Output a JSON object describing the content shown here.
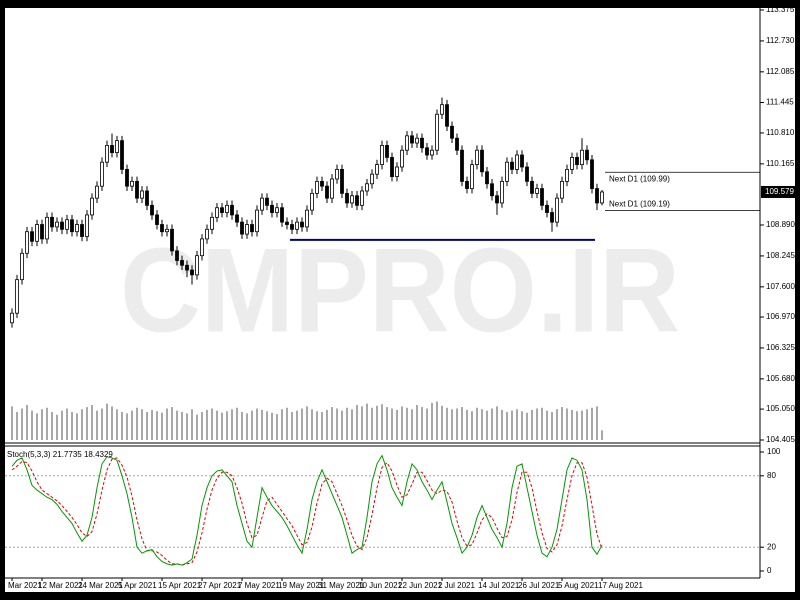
{
  "chart_data": {
    "type": "candlestick",
    "watermark": "CMPRO.IR",
    "categories": [
      "Mar 2021",
      null,
      null,
      null,
      null,
      null,
      "12 Mar 2021",
      null,
      null,
      null,
      null,
      null,
      null,
      null,
      "24 Mar 2021",
      null,
      null,
      null,
      null,
      null,
      null,
      null,
      "5 Apr 2021",
      null,
      null,
      null,
      null,
      null,
      null,
      null,
      "15 Apr 2021",
      null,
      null,
      null,
      null,
      null,
      null,
      null,
      "27 Apr 2021",
      null,
      null,
      null,
      null,
      null,
      null,
      null,
      "7 May 2021",
      null,
      null,
      null,
      null,
      null,
      null,
      null,
      "19 May 2021",
      null,
      null,
      null,
      null,
      null,
      null,
      null,
      "31 May 2021",
      null,
      null,
      null,
      null,
      null,
      null,
      null,
      "10 Jun 2021",
      null,
      null,
      null,
      null,
      null,
      null,
      null,
      "22 Jun 2021",
      null,
      null,
      null,
      null,
      null,
      null,
      null,
      "2 Jul 2021",
      null,
      null,
      null,
      null,
      null,
      null,
      null,
      "14 Jul 2021",
      null,
      null,
      null,
      null,
      null,
      null,
      null,
      "26 Jul 2021",
      null,
      null,
      null,
      null,
      null,
      null,
      null,
      "5 Aug 2021",
      null,
      null,
      null,
      null,
      null,
      null,
      null,
      "17 Aug 2021"
    ],
    "open": [
      106.85,
      107.05,
      107.75,
      108.3,
      108.75,
      108.55,
      108.9,
      108.6,
      109.05,
      108.85,
      108.95,
      108.8,
      109.0,
      108.75,
      108.9,
      108.65,
      109.1,
      109.45,
      109.7,
      110.2,
      110.55,
      110.4,
      110.65,
      110.05,
      109.7,
      109.8,
      109.45,
      109.6,
      109.3,
      109.1,
      108.9,
      108.75,
      108.8,
      108.35,
      108.15,
      108.05,
      107.95,
      107.85,
      108.25,
      108.6,
      108.8,
      109.05,
      109.25,
      109.15,
      109.3,
      109.1,
      108.95,
      108.7,
      108.9,
      108.75,
      109.2,
      109.45,
      109.3,
      109.15,
      109.25,
      108.95,
      108.9,
      108.8,
      108.95,
      108.85,
      109.2,
      109.55,
      109.8,
      109.7,
      109.45,
      109.85,
      110.05,
      109.55,
      109.35,
      109.5,
      109.3,
      109.6,
      109.75,
      109.95,
      110.15,
      110.55,
      110.3,
      109.9,
      110.1,
      110.45,
      110.75,
      110.6,
      110.7,
      110.5,
      110.35,
      110.45,
      111.2,
      111.4,
      110.95,
      110.7,
      110.45,
      109.8,
      109.65,
      110.15,
      110.45,
      110.0,
      109.75,
      109.5,
      109.35,
      109.8,
      110.2,
      110.05,
      110.35,
      110.1,
      109.8,
      109.55,
      109.65,
      109.3,
      109.15,
      108.95,
      109.45,
      109.8,
      110.05,
      110.3,
      110.15,
      110.45,
      110.25,
      109.65,
      109.35
    ],
    "high": [
      107.15,
      107.85,
      108.4,
      108.85,
      108.85,
      109.0,
      109.0,
      109.15,
      109.15,
      109.05,
      109.05,
      109.1,
      109.1,
      109.0,
      109.0,
      109.2,
      109.55,
      109.8,
      110.3,
      110.65,
      110.8,
      110.75,
      110.75,
      110.15,
      109.9,
      109.9,
      109.7,
      109.7,
      109.4,
      109.2,
      109.0,
      108.9,
      108.9,
      108.45,
      108.25,
      108.15,
      108.05,
      108.35,
      108.7,
      108.9,
      109.15,
      109.35,
      109.35,
      109.4,
      109.4,
      109.2,
      109.05,
      109.0,
      109.0,
      109.3,
      109.55,
      109.55,
      109.4,
      109.35,
      109.35,
      109.05,
      109.0,
      109.05,
      109.05,
      109.3,
      109.65,
      109.9,
      109.9,
      109.8,
      109.95,
      110.15,
      110.15,
      109.65,
      109.6,
      109.6,
      109.7,
      109.85,
      110.05,
      110.25,
      110.65,
      110.65,
      110.4,
      110.2,
      110.55,
      110.85,
      110.85,
      110.8,
      110.8,
      110.6,
      110.55,
      111.3,
      111.55,
      111.5,
      111.05,
      110.8,
      110.55,
      109.9,
      110.25,
      110.55,
      110.55,
      110.1,
      109.85,
      109.6,
      109.9,
      110.3,
      110.3,
      110.45,
      110.45,
      110.2,
      109.9,
      109.75,
      109.75,
      109.4,
      109.25,
      109.55,
      109.9,
      110.15,
      110.4,
      110.4,
      110.7,
      110.55,
      110.35,
      109.75,
      109.62
    ],
    "low": [
      106.75,
      106.95,
      107.65,
      108.2,
      108.45,
      108.45,
      108.5,
      108.5,
      108.75,
      108.75,
      108.7,
      108.7,
      108.65,
      108.65,
      108.55,
      108.55,
      109.0,
      109.35,
      109.6,
      110.1,
      110.3,
      110.3,
      109.95,
      109.6,
      109.6,
      109.35,
      109.35,
      109.2,
      109.0,
      108.8,
      108.65,
      108.65,
      108.25,
      108.05,
      107.95,
      107.8,
      107.65,
      107.75,
      108.15,
      108.5,
      108.7,
      108.95,
      109.05,
      109.05,
      109.0,
      108.85,
      108.6,
      108.6,
      108.65,
      108.65,
      109.1,
      109.2,
      109.05,
      109.05,
      108.85,
      108.8,
      108.7,
      108.7,
      108.75,
      108.75,
      109.1,
      109.45,
      109.6,
      109.35,
      109.35,
      109.75,
      109.45,
      109.25,
      109.25,
      109.2,
      109.2,
      109.5,
      109.65,
      109.85,
      110.05,
      110.2,
      109.8,
      109.8,
      110.0,
      110.35,
      110.5,
      110.5,
      110.4,
      110.25,
      110.25,
      110.35,
      111.1,
      110.85,
      110.6,
      110.35,
      109.7,
      109.55,
      109.55,
      110.05,
      109.9,
      109.65,
      109.4,
      109.1,
      109.25,
      109.7,
      109.95,
      109.95,
      110.0,
      109.7,
      109.45,
      109.45,
      109.2,
      109.05,
      108.75,
      108.85,
      109.35,
      109.7,
      109.95,
      110.05,
      110.05,
      110.15,
      109.55,
      109.2,
      109.3
    ],
    "close": [
      107.05,
      107.75,
      108.3,
      108.75,
      108.55,
      108.9,
      108.6,
      109.05,
      108.85,
      108.95,
      108.8,
      109.0,
      108.75,
      108.9,
      108.65,
      109.1,
      109.45,
      109.7,
      110.2,
      110.55,
      110.4,
      110.65,
      110.05,
      109.7,
      109.8,
      109.45,
      109.6,
      109.3,
      109.1,
      108.9,
      108.75,
      108.8,
      108.35,
      108.15,
      108.05,
      107.95,
      107.85,
      108.25,
      108.6,
      108.8,
      109.05,
      109.25,
      109.15,
      109.3,
      109.1,
      108.95,
      108.7,
      108.9,
      108.75,
      109.2,
      109.45,
      109.3,
      109.15,
      109.25,
      108.95,
      108.9,
      108.8,
      108.95,
      108.85,
      109.2,
      109.55,
      109.8,
      109.7,
      109.45,
      109.85,
      110.05,
      109.55,
      109.35,
      109.5,
      109.3,
      109.6,
      109.75,
      109.95,
      110.15,
      110.55,
      110.3,
      109.9,
      110.1,
      110.45,
      110.75,
      110.6,
      110.7,
      110.5,
      110.35,
      110.45,
      111.2,
      111.4,
      110.95,
      110.7,
      110.45,
      109.8,
      109.65,
      110.15,
      110.45,
      110.0,
      109.75,
      109.5,
      109.35,
      109.8,
      110.2,
      110.05,
      110.35,
      110.1,
      109.8,
      109.55,
      109.65,
      109.3,
      109.15,
      108.95,
      109.45,
      109.8,
      110.05,
      110.3,
      110.15,
      110.45,
      110.25,
      109.65,
      109.35,
      109.579
    ],
    "up_color": "#ffffff",
    "down_color": "#000000",
    "volume": [
      48,
      40,
      45,
      50,
      42,
      38,
      44,
      46,
      40,
      36,
      42,
      45,
      40,
      38,
      44,
      47,
      50,
      42,
      45,
      52,
      48,
      44,
      40,
      38,
      42,
      46,
      44,
      40,
      43,
      41,
      39,
      45,
      47,
      42,
      40,
      38,
      44,
      36,
      40,
      43,
      45,
      42,
      39,
      41,
      44,
      46,
      40,
      38,
      42,
      45,
      43,
      41,
      39,
      37,
      44,
      46,
      40,
      42,
      45,
      48,
      44,
      41,
      40,
      43,
      47,
      45,
      42,
      46,
      44,
      50,
      48,
      52,
      46,
      49,
      51,
      47,
      45,
      43,
      48,
      46,
      44,
      50,
      47,
      45,
      53,
      55,
      49,
      46,
      44,
      45,
      47,
      43,
      41,
      46,
      44,
      42,
      45,
      48,
      43,
      40,
      42,
      44,
      41,
      39,
      43,
      45,
      46,
      42,
      40,
      44,
      47,
      45,
      43,
      41,
      42,
      44,
      46,
      48,
      14
    ],
    "volume_color": "#505050",
    "ylim": [
      104.405,
      113.375
    ],
    "yticks": [
      104.405,
      {
        "value": 105.05,
        "label": "105.050"
      },
      {
        "value": 105.68,
        "label": "105.680"
      },
      106.325,
      {
        "value": 106.97,
        "label": "106.970"
      },
      {
        "value": 107.6,
        "label": "107.600"
      },
      108.245,
      {
        "value": 108.89,
        "label": "108.890"
      },
      110.165,
      {
        "value": 110.81,
        "label": "110.810"
      },
      111.445,
      112.085,
      {
        "value": 112.73,
        "label": "112.730"
      },
      113.375
    ],
    "current_price": 109.579,
    "support_level": 108.58,
    "support_color": "#000080",
    "annotations": [
      {
        "label": "Next D1 (109.99)",
        "value": 109.99
      },
      {
        "label": "Next D1 (109.19)",
        "value": 109.19
      }
    ],
    "stochastic": {
      "type": "stochastic",
      "label": "Stoch(5,3,3) 21.7735 18.4329",
      "ylim": [
        0,
        100
      ],
      "yticks": [
        0,
        20,
        80,
        100
      ],
      "levels": [
        20,
        80
      ],
      "k_color": "#009900",
      "d_color": "#e00000",
      "k": [
        88,
        93,
        95,
        85,
        72,
        68,
        65,
        62,
        60,
        56,
        50,
        45,
        40,
        32,
        25,
        30,
        45,
        70,
        90,
        96,
        95,
        93,
        80,
        65,
        45,
        20,
        15,
        17,
        18,
        12,
        8,
        6,
        5,
        6,
        5,
        7,
        10,
        30,
        55,
        70,
        80,
        84,
        85,
        80,
        75,
        55,
        40,
        25,
        20,
        45,
        70,
        62,
        55,
        50,
        45,
        38,
        30,
        22,
        15,
        35,
        60,
        75,
        85,
        75,
        65,
        55,
        45,
        30,
        15,
        18,
        20,
        45,
        75,
        90,
        97,
        85,
        70,
        62,
        55,
        75,
        90,
        85,
        75,
        68,
        60,
        68,
        75,
        58,
        40,
        28,
        15,
        20,
        30,
        45,
        55,
        45,
        35,
        28,
        20,
        40,
        70,
        88,
        90,
        70,
        50,
        30,
        15,
        12,
        20,
        35,
        60,
        85,
        95,
        93,
        85,
        60,
        20,
        14,
        21.7735
      ],
      "d": [
        85,
        88,
        92,
        91,
        84,
        75,
        68,
        65,
        62,
        59,
        55,
        50,
        45,
        39,
        32,
        29,
        33,
        48,
        68,
        85,
        94,
        95,
        89,
        79,
        63,
        43,
        27,
        17,
        17,
        16,
        13,
        9,
        6,
        6,
        5,
        6,
        7,
        16,
        32,
        52,
        68,
        78,
        83,
        83,
        80,
        70,
        57,
        40,
        28,
        30,
        45,
        59,
        62,
        56,
        50,
        44,
        38,
        30,
        22,
        24,
        37,
        57,
        73,
        78,
        75,
        65,
        55,
        43,
        30,
        21,
        18,
        28,
        47,
        70,
        87,
        91,
        84,
        72,
        62,
        64,
        73,
        83,
        83,
        76,
        68,
        65,
        68,
        67,
        58,
        42,
        28,
        21,
        22,
        32,
        43,
        48,
        45,
        36,
        28,
        29,
        43,
        66,
        83,
        83,
        70,
        50,
        32,
        19,
        16,
        22,
        38,
        60,
        80,
        91,
        91,
        79,
        55,
        31,
        18.4329
      ]
    }
  }
}
